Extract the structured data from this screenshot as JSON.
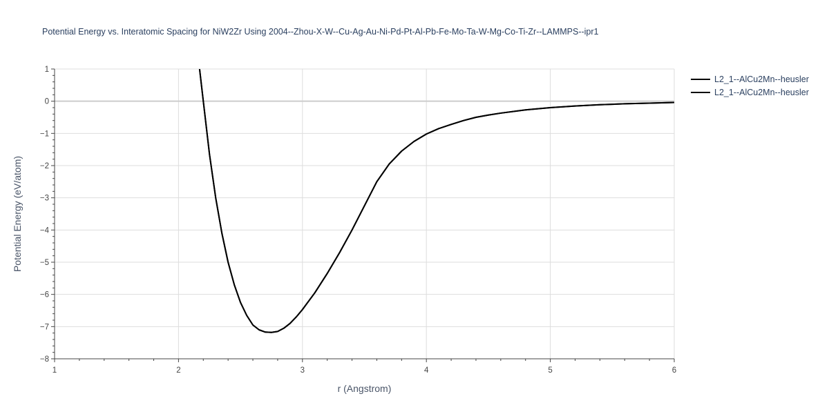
{
  "chart_data": {
    "type": "line",
    "title": "Potential Energy vs. Interatomic Spacing for NiW2Zr Using 2004--Zhou-X-W--Cu-Ag-Au-Ni-Pd-Pt-Al-Pb-Fe-Mo-Ta-W-Mg-Co-Ti-Zr--LAMMPS--ipr1",
    "xlabel": "r (Angstrom)",
    "ylabel": "Potential Energy (eV/atom)",
    "xlim": [
      1,
      6
    ],
    "ylim": [
      -8,
      1
    ],
    "xticks": [
      1,
      2,
      3,
      4,
      5,
      6
    ],
    "yticks": [
      1,
      0,
      -1,
      -2,
      -3,
      -4,
      -5,
      -6,
      -7,
      -8
    ],
    "grid": true,
    "legend_position": "top-right",
    "line_color": "#000000",
    "series": [
      {
        "name": "L2_1--AlCu2Mn--heusler",
        "x": [
          2.17,
          2.2,
          2.25,
          2.3,
          2.35,
          2.4,
          2.45,
          2.5,
          2.55,
          2.6,
          2.65,
          2.7,
          2.75,
          2.8,
          2.85,
          2.9,
          2.95,
          3.0,
          3.1,
          3.2,
          3.3,
          3.4,
          3.5,
          3.6,
          3.7,
          3.8,
          3.9,
          4.0,
          4.1,
          4.2,
          4.3,
          4.4,
          4.5,
          4.6,
          4.8,
          5.0,
          5.2,
          5.4,
          5.6,
          5.8,
          6.0
        ],
        "y": [
          1.0,
          0.0,
          -1.65,
          -3.0,
          -4.1,
          -5.0,
          -5.7,
          -6.25,
          -6.65,
          -6.95,
          -7.1,
          -7.17,
          -7.18,
          -7.15,
          -7.05,
          -6.9,
          -6.7,
          -6.47,
          -5.95,
          -5.35,
          -4.7,
          -4.0,
          -3.25,
          -2.5,
          -1.95,
          -1.55,
          -1.25,
          -1.02,
          -0.85,
          -0.72,
          -0.6,
          -0.5,
          -0.43,
          -0.37,
          -0.27,
          -0.2,
          -0.15,
          -0.11,
          -0.08,
          -0.06,
          -0.04
        ]
      },
      {
        "name": "L2_1--AlCu2Mn--heusler",
        "x": [
          2.17,
          2.2,
          2.25,
          2.3,
          2.35,
          2.4,
          2.45,
          2.5,
          2.55,
          2.6,
          2.65,
          2.7,
          2.75,
          2.8,
          2.85,
          2.9,
          2.95,
          3.0,
          3.1,
          3.2,
          3.3,
          3.4,
          3.5,
          3.6,
          3.7,
          3.8,
          3.9,
          4.0,
          4.1,
          4.2,
          4.3,
          4.4,
          4.5,
          4.6,
          4.8,
          5.0,
          5.2,
          5.4,
          5.6,
          5.8,
          6.0
        ],
        "y": [
          1.0,
          0.0,
          -1.65,
          -3.0,
          -4.1,
          -5.0,
          -5.7,
          -6.25,
          -6.65,
          -6.95,
          -7.1,
          -7.17,
          -7.18,
          -7.15,
          -7.05,
          -6.9,
          -6.7,
          -6.47,
          -5.95,
          -5.35,
          -4.7,
          -4.0,
          -3.25,
          -2.5,
          -1.95,
          -1.55,
          -1.25,
          -1.02,
          -0.85,
          -0.72,
          -0.6,
          -0.5,
          -0.43,
          -0.37,
          -0.27,
          -0.2,
          -0.15,
          -0.11,
          -0.08,
          -0.06,
          -0.04
        ]
      }
    ]
  }
}
